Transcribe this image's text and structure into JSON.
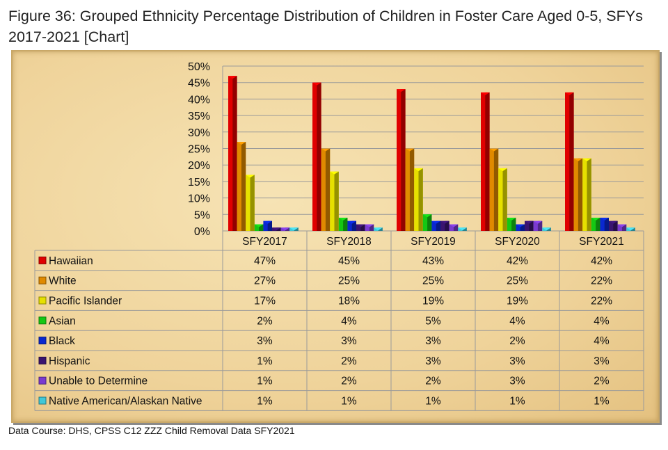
{
  "title": "Figure 36: Grouped Ethnicity Percentage Distribution of Children in Foster Care Aged 0-5, SFYs 2017-2021 [Chart]",
  "source": "Data Course: DHS, CPSS C12 ZZZ Child Removal Data SFY2021",
  "chart_data": {
    "type": "bar",
    "title": "",
    "xlabel": "",
    "ylabel": "",
    "ylim": [
      0,
      50
    ],
    "yticks": [
      "0%",
      "5%",
      "10%",
      "15%",
      "20%",
      "25%",
      "30%",
      "35%",
      "40%",
      "45%",
      "50%"
    ],
    "grid": true,
    "legend": "data-table",
    "categories": [
      "SFY2017",
      "SFY2018",
      "SFY2019",
      "SFY2020",
      "SFY2021"
    ],
    "series": [
      {
        "name": "Hawaiian",
        "color": "#e00000",
        "values": [
          47,
          45,
          43,
          42,
          42
        ]
      },
      {
        "name": "White",
        "color": "#e08a00",
        "values": [
          27,
          25,
          25,
          25,
          22
        ]
      },
      {
        "name": "Pacific Islander",
        "color": "#e6e000",
        "values": [
          17,
          18,
          19,
          19,
          22
        ]
      },
      {
        "name": "Asian",
        "color": "#14c814",
        "values": [
          2,
          4,
          5,
          4,
          4
        ]
      },
      {
        "name": "Black",
        "color": "#0a28d0",
        "values": [
          3,
          3,
          3,
          2,
          4
        ]
      },
      {
        "name": "Hispanic",
        "color": "#3a1470",
        "values": [
          1,
          2,
          3,
          3,
          3
        ]
      },
      {
        "name": "Unable to Determine",
        "color": "#7a3ad0",
        "values": [
          1,
          2,
          2,
          3,
          2
        ]
      },
      {
        "name": "Native American/Alaskan Native",
        "color": "#40c8d8",
        "values": [
          1,
          1,
          1,
          1,
          1
        ]
      }
    ]
  }
}
